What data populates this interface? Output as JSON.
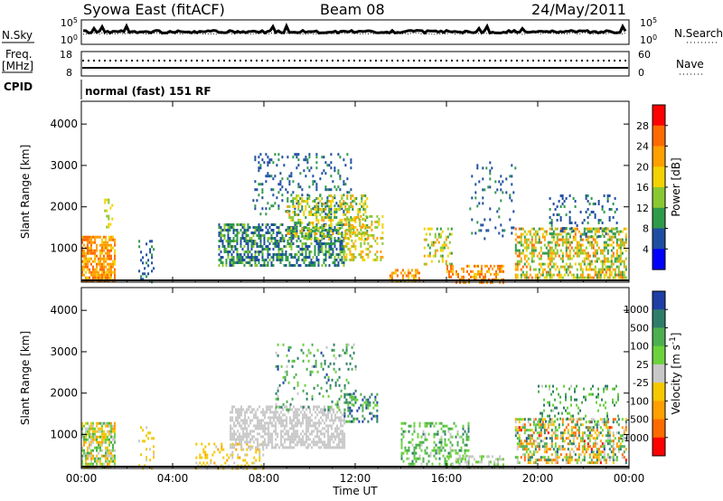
{
  "header": {
    "station": "Syowa East (fitACF)",
    "beam": "Beam 08",
    "date": "24/May/2011"
  },
  "strip_noise": {
    "left_label": "N.Sky",
    "right_label": "N.Search",
    "left_ticks": [
      "10^5",
      "10^0"
    ],
    "right_ticks": [
      "10^5",
      "10^0"
    ]
  },
  "strip_freq": {
    "left_label_lines": [
      "Freq.",
      "[MHz]"
    ],
    "left_ticks": [
      "18",
      "8"
    ],
    "right_label": "Nave",
    "right_ticks": [
      "60",
      "0"
    ]
  },
  "cpid": {
    "label": "CPID",
    "value": "normal (fast) 151 RF"
  },
  "chart_data": [
    {
      "type": "heatmap",
      "parameter": "Power",
      "ylabel": "Slant Range [km]",
      "xlabel": "",
      "y_ticks": [
        1000,
        2000,
        3000,
        4000
      ],
      "ylim": [
        180,
        4550
      ],
      "x_tick_labels": [
        "00:00",
        "04:00",
        "08:00",
        "12:00",
        "16:00",
        "20:00",
        "00:00"
      ],
      "xlim_hours": [
        0,
        24
      ],
      "colorbar": {
        "label": "Power [dB]",
        "ticks": [
          "28",
          "24",
          "20",
          "16",
          "12",
          "8",
          "4"
        ],
        "colors": [
          "#ff0000",
          "#ff6a00",
          "#ff9f00",
          "#f2d200",
          "#8ac832",
          "#2f9a4a",
          "#1f4ea0",
          "#0000ff"
        ]
      },
      "regions": [
        {
          "t0": 0.0,
          "t1": 1.5,
          "r0": 200,
          "r1": 1300,
          "v0": 18,
          "v1": 28,
          "density": 0.75
        },
        {
          "t0": 1.0,
          "t1": 1.4,
          "r0": 1500,
          "r1": 2200,
          "v0": 12,
          "v1": 20,
          "density": 0.25
        },
        {
          "t0": 2.5,
          "t1": 3.2,
          "r0": 200,
          "r1": 1200,
          "v0": 4,
          "v1": 10,
          "density": 0.22
        },
        {
          "t0": 6.0,
          "t1": 11.5,
          "r0": 600,
          "r1": 1600,
          "v0": 4,
          "v1": 14,
          "density": 0.55
        },
        {
          "t0": 7.5,
          "t1": 11.8,
          "r0": 1800,
          "r1": 3300,
          "v0": 4,
          "v1": 10,
          "density": 0.16
        },
        {
          "t0": 9.0,
          "t1": 12.5,
          "r0": 1200,
          "r1": 2300,
          "v0": 8,
          "v1": 22,
          "density": 0.4
        },
        {
          "t0": 11.5,
          "t1": 13.2,
          "r0": 700,
          "r1": 1800,
          "v0": 12,
          "v1": 24,
          "density": 0.35
        },
        {
          "t0": 13.5,
          "t1": 14.8,
          "r0": 200,
          "r1": 500,
          "v0": 16,
          "v1": 28,
          "density": 0.55
        },
        {
          "t0": 15.0,
          "t1": 16.2,
          "r0": 600,
          "r1": 1500,
          "v0": 10,
          "v1": 22,
          "density": 0.3
        },
        {
          "t0": 16.0,
          "t1": 18.5,
          "r0": 200,
          "r1": 600,
          "v0": 18,
          "v1": 28,
          "density": 0.45
        },
        {
          "t0": 17.0,
          "t1": 19.0,
          "r0": 1200,
          "r1": 3100,
          "v0": 4,
          "v1": 10,
          "density": 0.1
        },
        {
          "t0": 19.0,
          "t1": 23.9,
          "r0": 300,
          "r1": 1500,
          "v0": 8,
          "v1": 26,
          "density": 0.5
        },
        {
          "t0": 20.5,
          "t1": 23.5,
          "r0": 1300,
          "r1": 2300,
          "v0": 4,
          "v1": 10,
          "density": 0.2
        }
      ]
    },
    {
      "type": "heatmap",
      "parameter": "Velocity",
      "ylabel": "Slant Range [km]",
      "xlabel": "Time UT",
      "y_ticks": [
        1000,
        2000,
        3000,
        4000
      ],
      "ylim": [
        180,
        4550
      ],
      "x_tick_labels": [
        "00:00",
        "04:00",
        "08:00",
        "12:00",
        "16:00",
        "20:00",
        "00:00"
      ],
      "xlim_hours": [
        0,
        24
      ],
      "colorbar": {
        "label": "Velocity [m s^-1]",
        "ticks": [
          "1000",
          "500",
          "100",
          "25",
          "-25",
          "-100",
          "-500",
          "-1000"
        ],
        "colors": [
          "#1f3fa6",
          "#2e7d6a",
          "#4caf50",
          "#6cd23c",
          "#c8c8c8",
          "#f5c800",
          "#ff9f00",
          "#ff6a00",
          "#ff0000"
        ]
      },
      "regions": [
        {
          "t0": 0.0,
          "t1": 1.5,
          "r0": 200,
          "r1": 1300,
          "v0": -500,
          "v1": 500,
          "density": 0.7
        },
        {
          "t0": 2.5,
          "t1": 3.2,
          "r0": 200,
          "r1": 1200,
          "v0": -300,
          "v1": -50,
          "density": 0.2
        },
        {
          "t0": 5.0,
          "t1": 8.0,
          "r0": 200,
          "r1": 800,
          "v0": -400,
          "v1": -50,
          "density": 0.3
        },
        {
          "t0": 6.5,
          "t1": 11.5,
          "r0": 700,
          "r1": 1700,
          "v0": -20,
          "v1": 20,
          "density": 0.6
        },
        {
          "t0": 8.5,
          "t1": 12.0,
          "r0": 1600,
          "r1": 3200,
          "v0": 50,
          "v1": 900,
          "density": 0.15
        },
        {
          "t0": 11.5,
          "t1": 13.0,
          "r0": 1300,
          "r1": 2000,
          "v0": 200,
          "v1": 1000,
          "density": 0.4
        },
        {
          "t0": 14.0,
          "t1": 17.0,
          "r0": 300,
          "r1": 1300,
          "v0": 60,
          "v1": 700,
          "density": 0.35
        },
        {
          "t0": 16.0,
          "t1": 18.5,
          "r0": 200,
          "r1": 500,
          "v0": 30,
          "v1": 200,
          "density": 0.4
        },
        {
          "t0": 19.0,
          "t1": 23.9,
          "r0": 300,
          "r1": 1400,
          "v0": -900,
          "v1": 900,
          "density": 0.5
        },
        {
          "t0": 20.0,
          "t1": 23.5,
          "r0": 1300,
          "r1": 2200,
          "v0": 50,
          "v1": 800,
          "density": 0.15
        }
      ]
    }
  ]
}
